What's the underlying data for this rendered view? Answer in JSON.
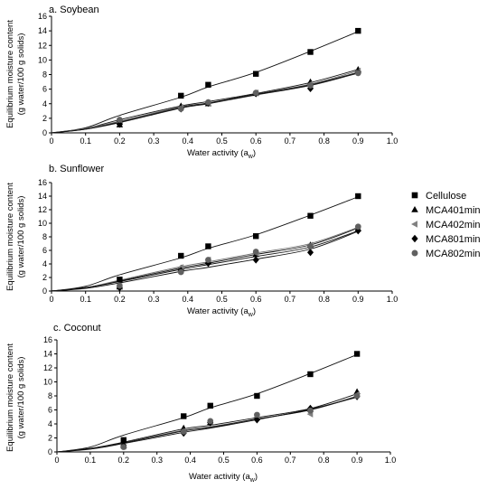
{
  "figure": {
    "ylabel_line1": "Equilibrium moisture content",
    "ylabel_line2": "(g water/100 g solids)",
    "xlabel_main": "Water activity (a",
    "xlabel_sub": "w",
    "xlabel_close": ")"
  },
  "legend": [
    {
      "name": "Cellulose",
      "marker": "square",
      "color": "#000000"
    },
    {
      "name": "MCA401min",
      "marker": "triangle-up",
      "color": "#000000"
    },
    {
      "name": "MCA402min",
      "marker": "triangle-left",
      "color": "#808080"
    },
    {
      "name": "MCA801min",
      "marker": "diamond",
      "color": "#000000"
    },
    {
      "name": "MCA802min",
      "marker": "circle",
      "color": "#606060"
    }
  ],
  "chart_data": [
    {
      "type": "scatter",
      "title": "a. Soybean",
      "xlabel": "Water activity (aw)",
      "ylabel": "Equilibrium moisture content (g water/100 g solids)",
      "xlim": [
        0,
        1.0
      ],
      "ylim": [
        0,
        16
      ],
      "xticks": [
        "0",
        "0.1",
        "0.2",
        "0.3",
        "0.4",
        "0.5",
        "0.6",
        "0.7",
        "0.8",
        "0.9",
        "1.0"
      ],
      "yticks": [
        "0",
        "2",
        "4",
        "6",
        "8",
        "10",
        "12",
        "14",
        "16"
      ],
      "x": [
        0.2,
        0.38,
        0.46,
        0.6,
        0.76,
        0.9
      ],
      "series": [
        {
          "name": "Cellulose",
          "values": [
            1.5,
            5.1,
            6.6,
            8.1,
            11.1,
            14.0
          ],
          "fit": [
            0,
            0.7,
            2.4,
            4.9,
            6.3,
            8.3,
            11.2,
            13.9
          ]
        },
        {
          "name": "MCA401min",
          "values": [
            1.1,
            3.7,
            4.0,
            5.4,
            7.0,
            8.7
          ],
          "fit": [
            0,
            0.6,
            1.8,
            3.7,
            4.3,
            5.4,
            6.9,
            8.7
          ]
        },
        {
          "name": "MCA402min",
          "values": [
            1.4,
            3.5,
            4.1,
            5.5,
            6.7,
            8.5
          ],
          "fit": [
            0,
            0.6,
            1.6,
            3.6,
            4.1,
            5.3,
            6.7,
            8.5
          ]
        },
        {
          "name": "MCA801min",
          "values": [
            1.2,
            3.3,
            4.1,
            5.4,
            6.1,
            8.3
          ],
          "fit": [
            0,
            0.5,
            1.4,
            3.4,
            4.0,
            5.2,
            6.5,
            8.2
          ]
        },
        {
          "name": "MCA802min",
          "values": [
            1.8,
            3.3,
            4.2,
            5.5,
            6.5,
            8.2
          ],
          "fit": [
            0,
            0.5,
            1.5,
            3.5,
            4.1,
            5.3,
            6.6,
            8.3
          ]
        }
      ]
    },
    {
      "type": "scatter",
      "title": "b. Sunflower",
      "xlabel": "Water activity (aw)",
      "ylabel": "Equilibrium moisture content (g water/100 g solids)",
      "xlim": [
        0,
        1.0
      ],
      "ylim": [
        0,
        16
      ],
      "xticks": [
        "0",
        "0.1",
        "0.2",
        "0.3",
        "0.4",
        "0.5",
        "0.6",
        "0.7",
        "0.8",
        "0.9",
        "1.0"
      ],
      "yticks": [
        "0",
        "2",
        "4",
        "6",
        "8",
        "10",
        "12",
        "14",
        "16"
      ],
      "x": [
        0.2,
        0.38,
        0.46,
        0.6,
        0.76,
        0.9
      ],
      "series": [
        {
          "name": "Cellulose",
          "values": [
            1.7,
            5.2,
            6.6,
            8.1,
            11.1,
            14.0
          ],
          "fit": [
            0,
            0.7,
            2.4,
            4.9,
            6.3,
            8.3,
            11.2,
            13.9
          ]
        },
        {
          "name": "MCA401min",
          "values": [
            0.6,
            3.4,
            4.4,
            5.4,
            6.8,
            9.2
          ],
          "fit": [
            0,
            0.5,
            1.5,
            3.4,
            4.1,
            5.4,
            6.8,
            9.3
          ]
        },
        {
          "name": "MCA402min",
          "values": [
            0.7,
            3.5,
            4.6,
            5.6,
            6.8,
            9.3
          ],
          "fit": [
            0,
            0.5,
            1.6,
            3.6,
            4.3,
            5.6,
            7.0,
            9.4
          ]
        },
        {
          "name": "MCA801min",
          "values": [
            0.5,
            3.0,
            4.1,
            4.6,
            5.7,
            8.9
          ],
          "fit": [
            0,
            0.4,
            1.2,
            2.9,
            3.5,
            4.7,
            6.2,
            8.8
          ]
        },
        {
          "name": "MCA802min",
          "values": [
            0.8,
            2.8,
            4.6,
            5.8,
            6.6,
            9.5
          ],
          "fit": [
            0,
            0.5,
            1.4,
            3.2,
            3.9,
            5.1,
            6.5,
            8.9
          ]
        }
      ]
    },
    {
      "type": "scatter",
      "title": "c. Coconut",
      "xlabel": "Water activity (aw)",
      "ylabel": "Equilibrium moisture content (g water/100 g solids)",
      "xlim": [
        0,
        1.0
      ],
      "ylim": [
        0,
        16
      ],
      "xticks": [
        "0",
        "0.1",
        "0.2",
        "0.3",
        "0.4",
        "0.5",
        "0.6",
        "0.7",
        "0.8",
        "0.9",
        "1.0"
      ],
      "yticks": [
        "0",
        "2",
        "4",
        "6",
        "8",
        "10",
        "12",
        "14",
        "16"
      ],
      "x": [
        0.2,
        0.38,
        0.46,
        0.6,
        0.76,
        0.9
      ],
      "series": [
        {
          "name": "Cellulose",
          "values": [
            1.7,
            5.1,
            6.6,
            8.0,
            11.1,
            14.0
          ],
          "fit": [
            0,
            0.7,
            2.4,
            4.9,
            6.3,
            8.3,
            11.2,
            13.9
          ]
        },
        {
          "name": "MCA401min",
          "values": [
            0.9,
            3.4,
            4.2,
            4.9,
            6.1,
            8.6
          ],
          "fit": [
            0,
            0.5,
            1.4,
            3.3,
            3.8,
            4.9,
            6.2,
            8.3
          ]
        },
        {
          "name": "MCA402min",
          "values": [
            0.8,
            3.0,
            4.2,
            5.0,
            5.4,
            8.2
          ],
          "fit": [
            0,
            0.5,
            1.3,
            3.1,
            3.6,
            4.7,
            6.0,
            8.0
          ]
        },
        {
          "name": "MCA801min",
          "values": [
            0.9,
            2.7,
            4.2,
            4.6,
            6.2,
            7.9
          ],
          "fit": [
            0,
            0.4,
            1.2,
            2.8,
            3.4,
            4.6,
            6.1,
            7.8
          ]
        },
        {
          "name": "MCA802min",
          "values": [
            0.7,
            2.9,
            4.4,
            5.3,
            5.9,
            8.0
          ],
          "fit": [
            0,
            0.5,
            1.3,
            3.0,
            3.5,
            4.7,
            6.0,
            7.9
          ]
        }
      ]
    }
  ]
}
